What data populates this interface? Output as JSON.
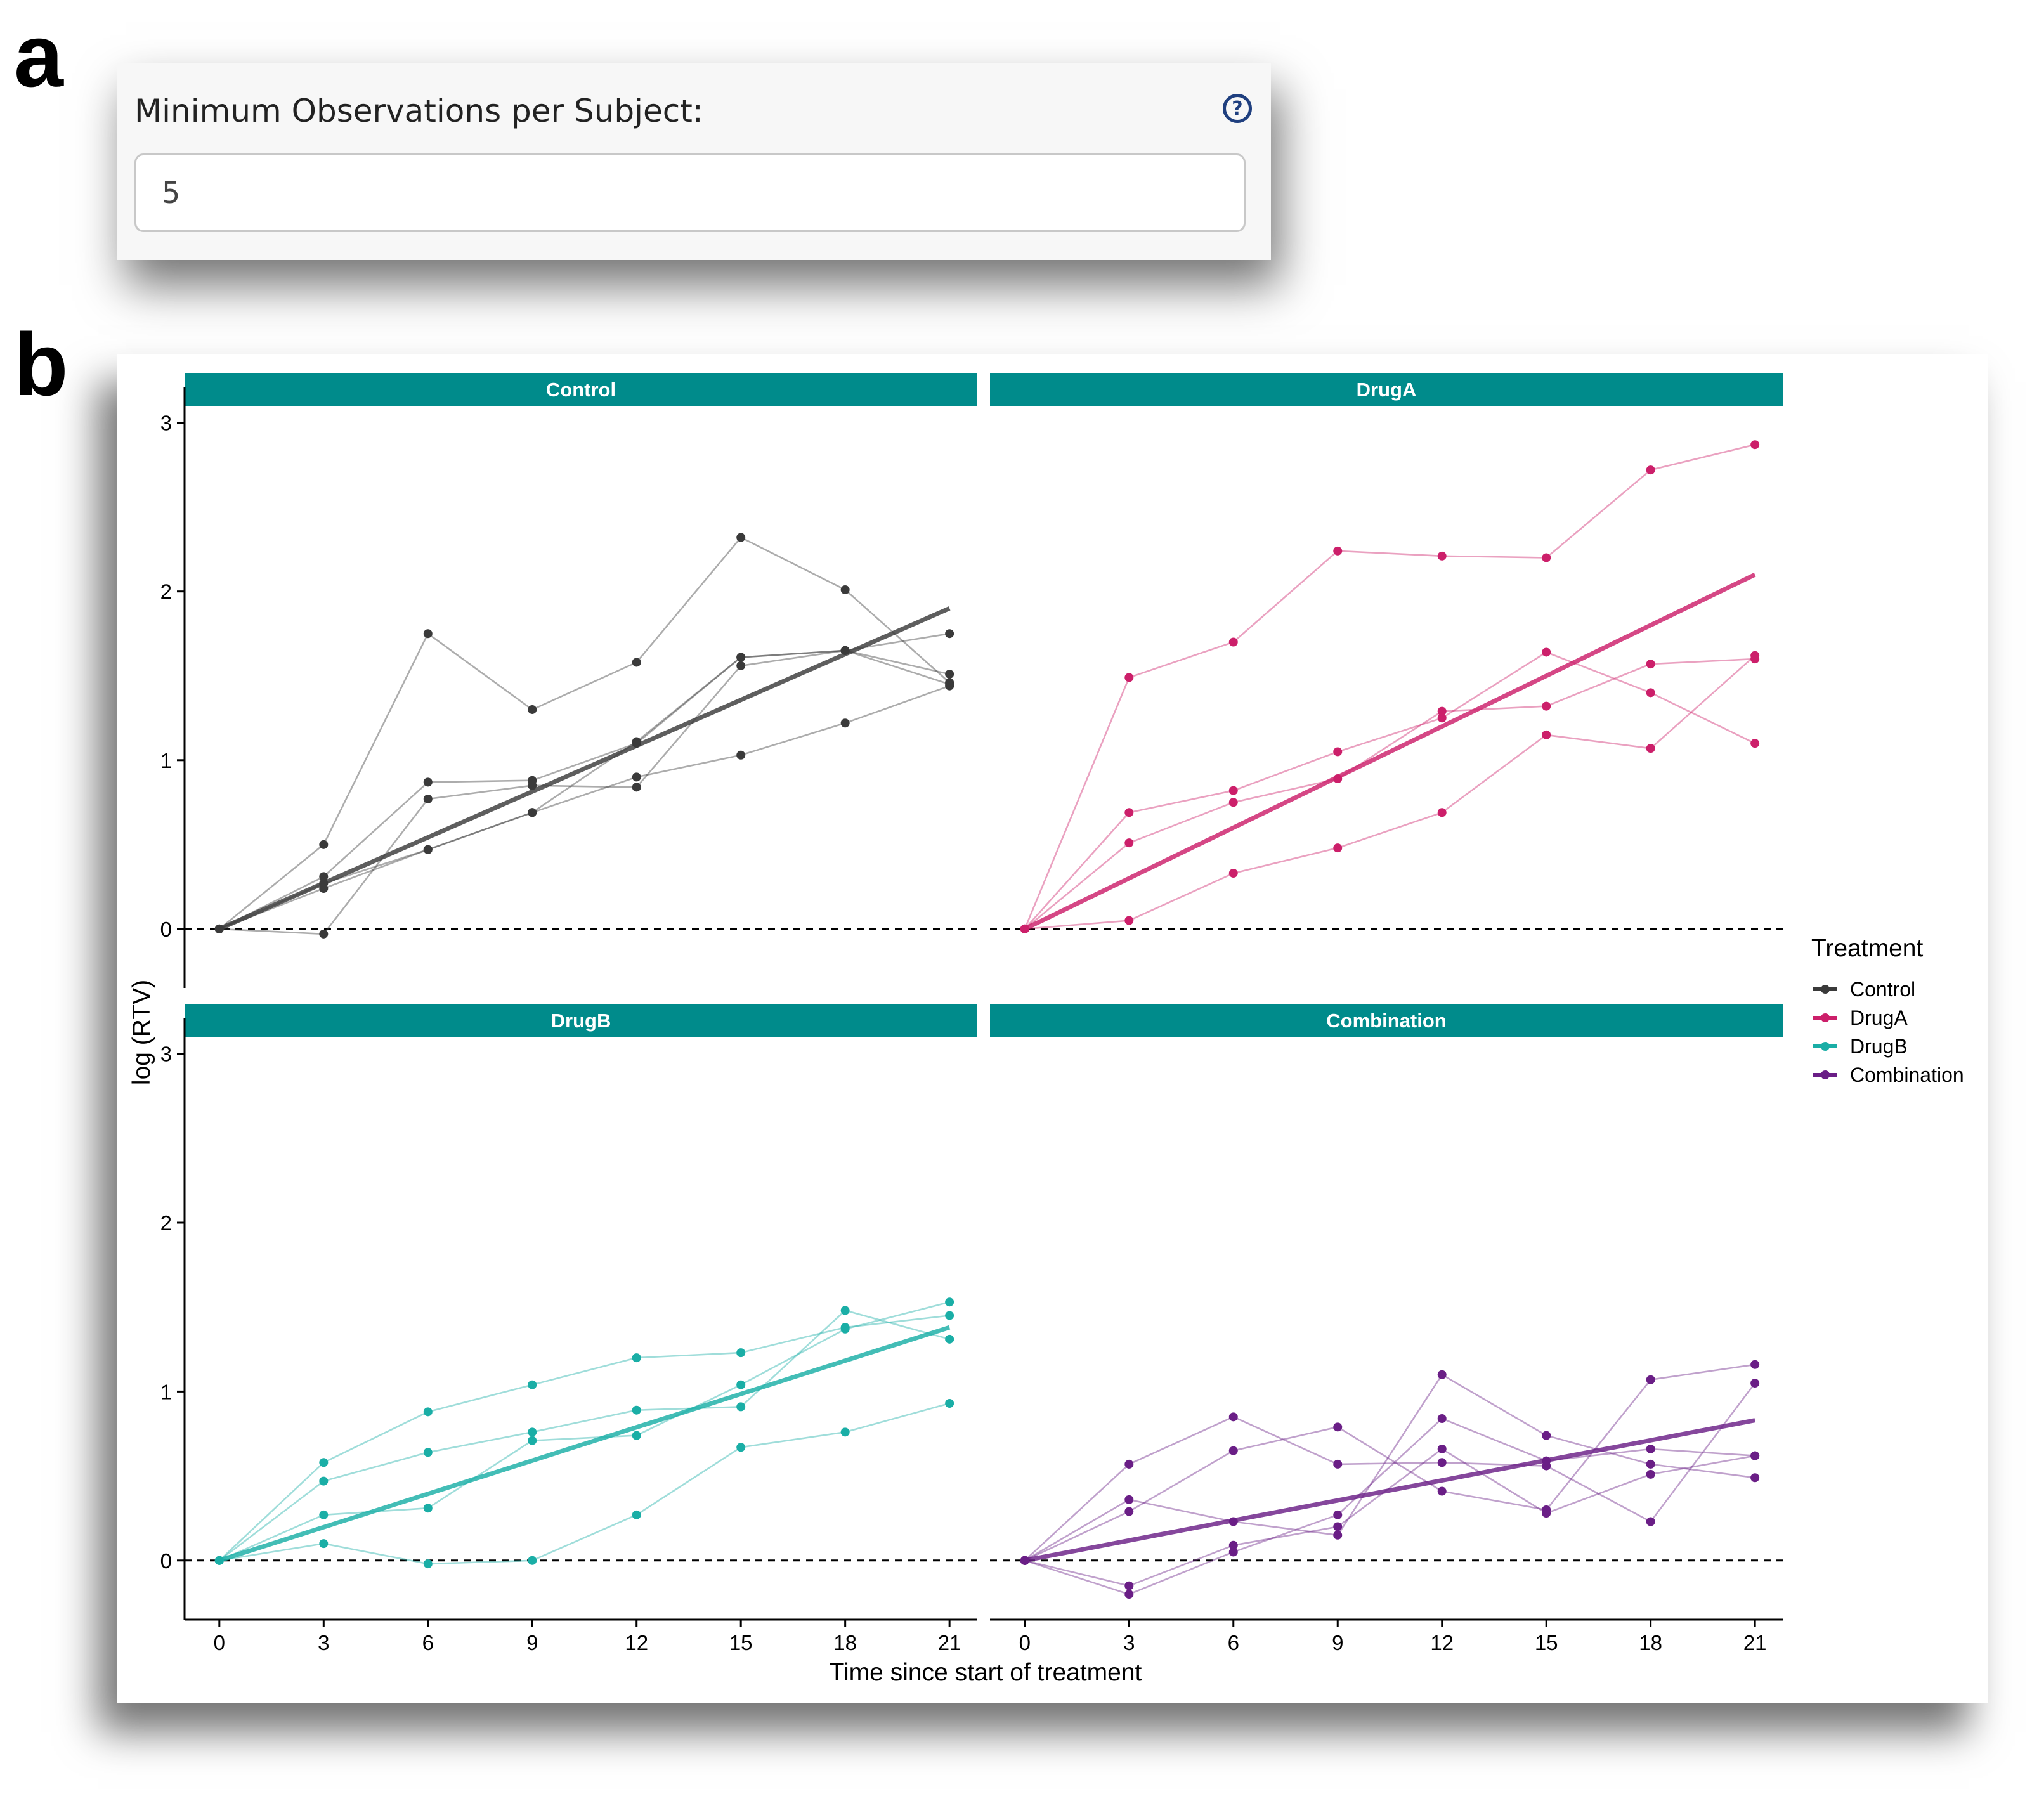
{
  "panel_labels": {
    "a": "a",
    "b": "b"
  },
  "form": {
    "label": "Minimum Observations per Subject:",
    "help_icon": "question-circle-icon",
    "help_glyph": "?",
    "value": "5",
    "colors": {
      "help_icon": "#1f3f7f",
      "input_border": "#c8c8c8"
    }
  },
  "chart_data": {
    "type": "line",
    "xlabel": "Time since start of treatment",
    "ylabel": "log (RTV)",
    "x_ticks": [
      0,
      3,
      6,
      9,
      12,
      15,
      18,
      21
    ],
    "y_ticks": [
      0,
      1,
      2,
      3
    ],
    "xlim": [
      -1,
      21.8
    ],
    "ylim": [
      -0.35,
      3.1
    ],
    "reference_line": {
      "y": 0,
      "style": "dashed"
    },
    "strip_color": "#008b8b",
    "legend": {
      "title": "Treatment",
      "placement": "right",
      "entries": [
        "Control",
        "DrugA",
        "DrugB",
        "Combination"
      ]
    },
    "facets": [
      {
        "name": "Control",
        "color": "#3a3a3a",
        "fit": {
          "x": [
            0,
            21
          ],
          "y": [
            0,
            1.9
          ]
        },
        "subjects": [
          {
            "x": [
              0,
              3,
              6,
              9,
              12,
              15,
              18,
              21
            ],
            "y": [
              0,
              0.5,
              1.75,
              1.3,
              1.58,
              2.32,
              2.01,
              1.46
            ]
          },
          {
            "x": [
              0,
              3,
              6,
              9,
              12,
              15,
              18,
              21
            ],
            "y": [
              0,
              0.31,
              0.87,
              0.88,
              1.1,
              1.61,
              1.65,
              1.75
            ]
          },
          {
            "x": [
              0,
              3,
              6,
              9,
              12,
              15,
              18,
              21
            ],
            "y": [
              0,
              0.27,
              0.47,
              0.69,
              0.9,
              1.03,
              1.22,
              1.44
            ]
          },
          {
            "x": [
              0,
              3,
              6,
              9,
              12,
              15,
              18,
              21
            ],
            "y": [
              0,
              -0.03,
              0.77,
              0.85,
              0.84,
              1.56,
              1.65,
              1.51
            ]
          },
          {
            "x": [
              0,
              3,
              6,
              9,
              12,
              15,
              18,
              21
            ],
            "y": [
              0,
              0.24,
              0.47,
              0.69,
              1.11,
              1.61,
              1.65,
              1.45
            ]
          }
        ]
      },
      {
        "name": "DrugA",
        "color": "#cc1f6a",
        "fit": {
          "x": [
            0,
            21
          ],
          "y": [
            0,
            2.1
          ]
        },
        "subjects": [
          {
            "x": [
              0,
              3,
              6,
              9,
              12,
              15,
              18,
              21
            ],
            "y": [
              0,
              1.49,
              1.7,
              2.24,
              2.21,
              2.2,
              2.72,
              2.87
            ]
          },
          {
            "x": [
              0,
              3,
              6,
              9,
              12,
              15,
              18,
              21
            ],
            "y": [
              0,
              0.69,
              0.82,
              1.05,
              1.25,
              1.64,
              1.4,
              1.1
            ]
          },
          {
            "x": [
              0,
              3,
              6,
              9,
              12,
              15,
              18,
              21
            ],
            "y": [
              0,
              0.51,
              0.75,
              0.89,
              1.29,
              1.32,
              1.57,
              1.6
            ]
          },
          {
            "x": [
              0,
              3,
              6,
              9,
              12,
              15,
              18,
              21
            ],
            "y": [
              0,
              0.05,
              0.33,
              0.48,
              0.69,
              1.15,
              1.07,
              1.62
            ]
          }
        ]
      },
      {
        "name": "DrugB",
        "color": "#1aaea6",
        "fit": {
          "x": [
            0,
            21
          ],
          "y": [
            0,
            1.38
          ]
        },
        "subjects": [
          {
            "x": [
              0,
              3,
              6,
              9,
              12,
              15,
              18,
              21
            ],
            "y": [
              0,
              0.58,
              0.88,
              1.04,
              1.2,
              1.23,
              1.38,
              1.45
            ]
          },
          {
            "x": [
              0,
              3,
              6,
              9,
              12,
              15,
              18,
              21
            ],
            "y": [
              0,
              0.47,
              0.64,
              0.76,
              0.89,
              0.91,
              1.48,
              1.31
            ]
          },
          {
            "x": [
              0,
              3,
              6,
              9,
              12,
              15,
              18,
              21
            ],
            "y": [
              0,
              0.27,
              0.31,
              0.71,
              0.74,
              1.04,
              1.37,
              1.53
            ]
          },
          {
            "x": [
              0,
              3,
              6,
              9,
              12,
              15,
              18,
              21
            ],
            "y": [
              0,
              0.1,
              -0.02,
              0.0,
              0.27,
              0.67,
              0.76,
              0.93
            ]
          }
        ]
      },
      {
        "name": "Combination",
        "color": "#6a1e86",
        "fit": {
          "x": [
            0,
            21
          ],
          "y": [
            0,
            0.83
          ]
        },
        "subjects": [
          {
            "x": [
              0,
              3,
              6,
              9,
              12,
              15,
              18,
              21
            ],
            "y": [
              0,
              0.57,
              0.85,
              0.57,
              0.58,
              0.56,
              0.23,
              1.05
            ]
          },
          {
            "x": [
              0,
              3,
              6,
              9,
              12,
              15,
              18,
              21
            ],
            "y": [
              0,
              0.29,
              0.65,
              0.79,
              0.41,
              0.3,
              1.07,
              1.16
            ]
          },
          {
            "x": [
              0,
              3,
              6,
              9,
              12,
              15,
              18,
              21
            ],
            "y": [
              0,
              0.36,
              0.23,
              0.15,
              1.1,
              0.74,
              0.57,
              0.49
            ]
          },
          {
            "x": [
              0,
              3,
              6,
              9,
              12,
              15,
              18,
              21
            ],
            "y": [
              0,
              -0.15,
              0.09,
              0.2,
              0.66,
              0.28,
              0.51,
              0.62
            ]
          },
          {
            "x": [
              0,
              3,
              6,
              9,
              12,
              15,
              18,
              21
            ],
            "y": [
              0,
              -0.2,
              0.05,
              0.27,
              0.84,
              0.59,
              0.66,
              0.62
            ]
          }
        ]
      }
    ]
  }
}
